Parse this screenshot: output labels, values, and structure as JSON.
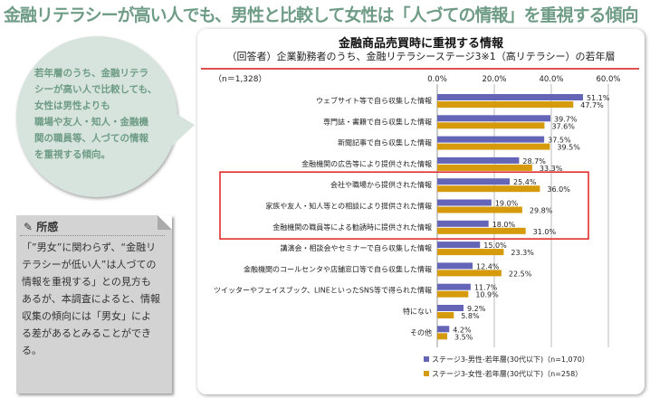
{
  "header": {
    "title": "金融リテラシーが高い人でも、男性と比較して女性は「人づての情報」を重視する傾向"
  },
  "bubble": {
    "lines": [
      "若年層のうち、金融リテラ",
      "シーが高い人で比較しても、",
      "女性は男性よりも",
      "職場や友人・知人・金融機",
      "関の職員等、人づての情報",
      "を重視する傾向。"
    ]
  },
  "note": {
    "heading": "所感",
    "icon": "pen-icon",
    "lines": [
      "「”男女”に関わらず、“金融リ",
      "テラシーが低い人”は人づての",
      "情報を重視する」との見方も",
      "あるが、本調査によると、情報",
      "収集の傾向には「男女」によ",
      "る差があるとみることができる。"
    ]
  },
  "colors": {
    "male": "#6565b8",
    "female": "#d69b0c",
    "highlight": "#e02020"
  },
  "chart_data": {
    "type": "bar",
    "orientation": "horizontal",
    "title": "金融商品売買時に重視する情報",
    "subtitle": "（回答者）企業勤務者のうち、金融リテラシーステージ3※1（高リテラシー）の若年層",
    "sample_note": "（n＝1,328）",
    "xlim": [
      0,
      60
    ],
    "xticks": [
      "0.0%",
      "20.0%",
      "40.0%",
      "60.0%"
    ],
    "grid": true,
    "legend_position": "bottom-right",
    "categories": [
      "ウェブサイト等で自ら収集した情報",
      "専門誌・書籍で自ら収集した情報",
      "新聞記事で自ら収集した情報",
      "金融機関の広告等により提供された情報",
      "会社や職場から提供された情報",
      "家族や友人・知人等との相談により提供された情報",
      "金融機関の職員等による勧誘時に提供された情報",
      "講演会・相談会やセミナーで自ら収集した情報",
      "金融機関のコールセンタや店舗窓口等で自ら収集した情報",
      "ツイッターやフェイスブック、LINEといったSNS等で得られた情報",
      "特にない",
      "その他"
    ],
    "highlighted": [
      4,
      5,
      6
    ],
    "series": [
      {
        "name": "ステージ3-男性-若年層(30代以下)（n=1,070）",
        "values": [
          51.1,
          39.7,
          37.5,
          28.7,
          25.4,
          19.0,
          18.0,
          15.0,
          12.4,
          11.7,
          9.2,
          4.2
        ]
      },
      {
        "name": "ステージ3-女性-若年層(30代以下)（n=258）",
        "values": [
          47.7,
          37.6,
          39.5,
          33.3,
          36.0,
          29.8,
          31.0,
          23.3,
          22.5,
          10.9,
          5.8,
          3.5
        ]
      }
    ]
  }
}
